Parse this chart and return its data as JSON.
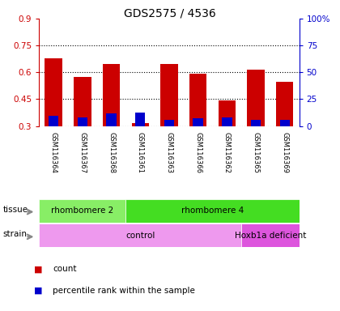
{
  "title": "GDS2575 / 4536",
  "samples": [
    "GSM116364",
    "GSM116367",
    "GSM116368",
    "GSM116361",
    "GSM116363",
    "GSM116366",
    "GSM116362",
    "GSM116365",
    "GSM116369"
  ],
  "red_values": [
    0.68,
    0.575,
    0.645,
    0.315,
    0.645,
    0.59,
    0.445,
    0.615,
    0.545
  ],
  "blue_values": [
    0.355,
    0.348,
    0.37,
    0.375,
    0.335,
    0.345,
    0.348,
    0.335,
    0.335
  ],
  "red_base": 0.3,
  "blue_base": 0.3,
  "ylim": [
    0.3,
    0.9
  ],
  "yticks": [
    0.3,
    0.45,
    0.6,
    0.75,
    0.9
  ],
  "ytick_labels": [
    "0.3",
    "0.45",
    "0.6",
    "0.75",
    "0.9"
  ],
  "right_yticks": [
    0,
    25,
    50,
    75,
    100
  ],
  "right_ytick_labels": [
    "0",
    "25",
    "50",
    "75",
    "100%"
  ],
  "tissue_groups": [
    {
      "label": "rhombomere 2",
      "start": 0,
      "end": 3,
      "color": "#88ee66"
    },
    {
      "label": "rhombomere 4",
      "start": 3,
      "end": 9,
      "color": "#44dd22"
    }
  ],
  "strain_groups": [
    {
      "label": "control",
      "start": 0,
      "end": 7,
      "color": "#ee99ee"
    },
    {
      "label": "Hoxb1a deficient",
      "start": 7,
      "end": 9,
      "color": "#dd55dd"
    }
  ],
  "bar_color_red": "#cc0000",
  "bar_color_blue": "#0000cc",
  "bg_color": "#cccccc",
  "plot_bg": "#ffffff",
  "title_color": "#000000",
  "left_axis_color": "#cc0000",
  "right_axis_color": "#0000cc",
  "bar_width": 0.6,
  "blue_bar_width": 0.35
}
